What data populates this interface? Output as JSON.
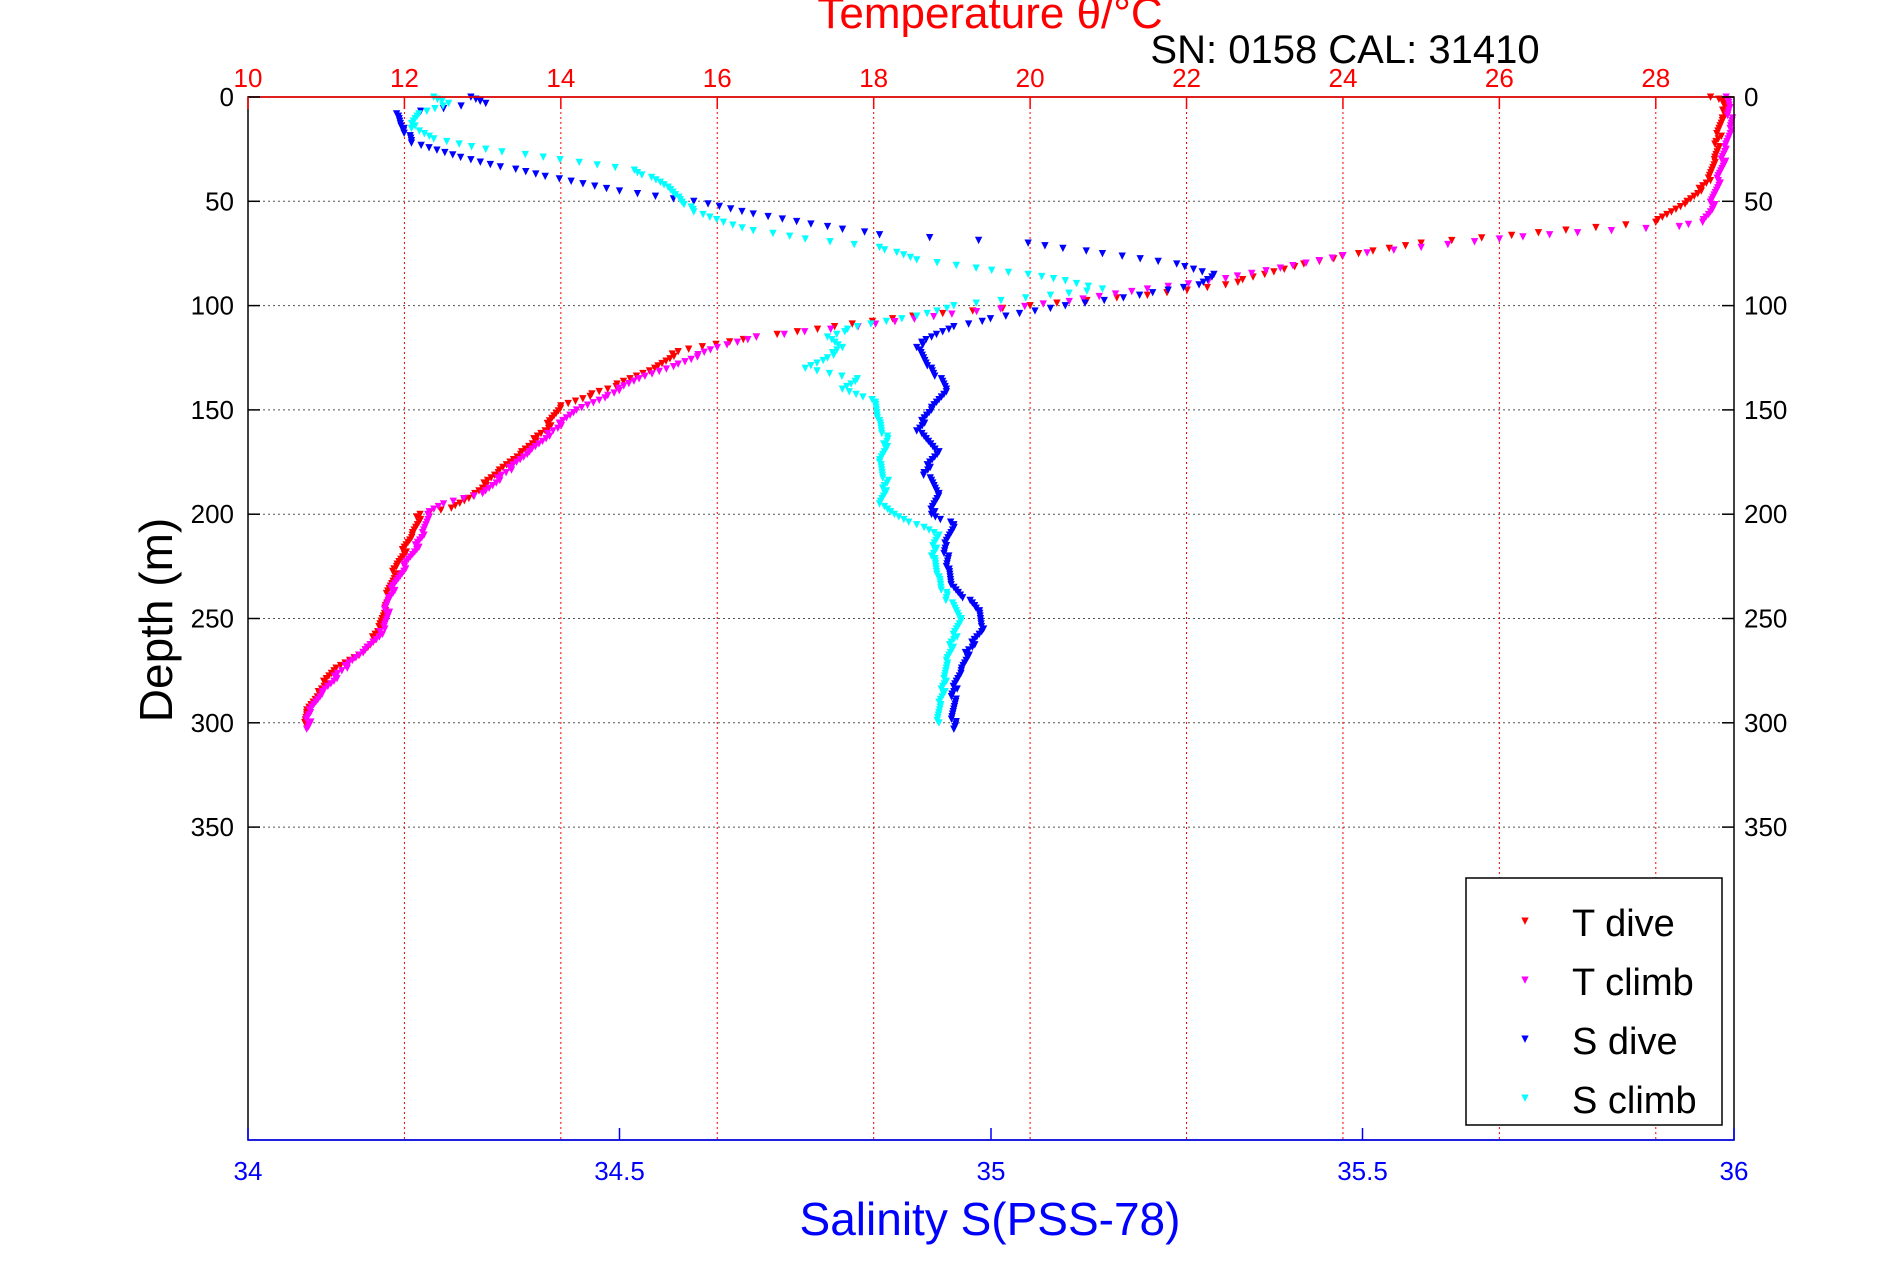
{
  "chart_data": {
    "type": "scatter",
    "title": "Temperature θ/°C",
    "subtitle": "SN: 0158  CAL: 31410",
    "ylabel": "Depth (m)",
    "xlabel": "Salinity S(PSS-78)",
    "x_top_label": "Temperature θ/°C",
    "ylim": [
      0,
      500
    ],
    "y_reversed": true,
    "y_ticks": [
      0,
      50,
      100,
      150,
      200,
      250,
      300,
      350
    ],
    "temperature_axis": {
      "lim": [
        10,
        29
      ],
      "ticks": [
        10,
        12,
        14,
        16,
        18,
        20,
        22,
        24,
        26,
        28
      ],
      "position": "top"
    },
    "salinity_axis": {
      "lim": [
        34,
        36
      ],
      "ticks": [
        34,
        34.5,
        35,
        35.5,
        36
      ],
      "position": "bottom"
    },
    "grid": true,
    "legend_position": "bottom-right",
    "colors": {
      "temperature_axis": "#ff0000",
      "salinity_axis": "#0000ff",
      "T_dive": "#ff0000",
      "T_climb": "#ff00ff",
      "S_dive": "#0000ff",
      "S_climb": "#00ffff"
    },
    "series": [
      {
        "name": "T dive",
        "axis": "temperature",
        "color": "#ff0000",
        "points": [
          [
            28.7,
            0
          ],
          [
            28.85,
            2
          ],
          [
            28.9,
            5
          ],
          [
            28.85,
            10
          ],
          [
            28.8,
            20
          ],
          [
            28.75,
            30
          ],
          [
            28.7,
            40
          ],
          [
            28.4,
            50
          ],
          [
            28.0,
            60
          ],
          [
            26.5,
            65
          ],
          [
            25.0,
            70
          ],
          [
            24.2,
            75
          ],
          [
            23.5,
            80
          ],
          [
            23.0,
            85
          ],
          [
            22.5,
            90
          ],
          [
            21.5,
            95
          ],
          [
            20.0,
            100
          ],
          [
            18.5,
            105
          ],
          [
            17.5,
            110
          ],
          [
            16.5,
            115
          ],
          [
            15.5,
            122
          ],
          [
            15.2,
            130
          ],
          [
            14.6,
            140
          ],
          [
            14.0,
            148
          ],
          [
            13.8,
            160
          ],
          [
            13.5,
            170
          ],
          [
            13.2,
            180
          ],
          [
            12.9,
            190
          ],
          [
            12.6,
            197
          ],
          [
            12.2,
            200
          ],
          [
            12.1,
            210
          ],
          [
            11.9,
            225
          ],
          [
            11.75,
            245
          ],
          [
            11.7,
            255
          ],
          [
            11.5,
            265
          ],
          [
            11.1,
            275
          ],
          [
            10.9,
            285
          ],
          [
            10.75,
            295
          ],
          [
            10.75,
            301
          ]
        ]
      },
      {
        "name": "T climb",
        "axis": "temperature",
        "color": "#ff00ff",
        "points": [
          [
            28.9,
            0
          ],
          [
            28.95,
            5
          ],
          [
            28.95,
            15
          ],
          [
            28.9,
            25
          ],
          [
            28.8,
            40
          ],
          [
            28.7,
            55
          ],
          [
            28.6,
            60
          ],
          [
            28.3,
            62
          ],
          [
            27.0,
            65
          ],
          [
            26.0,
            68
          ],
          [
            25.0,
            72
          ],
          [
            24.0,
            76
          ],
          [
            23.2,
            82
          ],
          [
            22.5,
            87
          ],
          [
            21.5,
            92
          ],
          [
            20.5,
            98
          ],
          [
            19.0,
            104
          ],
          [
            17.8,
            110
          ],
          [
            16.5,
            115
          ],
          [
            16.0,
            120
          ],
          [
            15.5,
            128
          ],
          [
            15.0,
            135
          ],
          [
            14.6,
            143
          ],
          [
            14.2,
            150
          ],
          [
            13.9,
            160
          ],
          [
            13.6,
            170
          ],
          [
            13.3,
            180
          ],
          [
            13.0,
            190
          ],
          [
            12.5,
            195
          ],
          [
            12.3,
            200
          ],
          [
            12.25,
            210
          ],
          [
            12.0,
            225
          ],
          [
            11.8,
            240
          ],
          [
            11.75,
            255
          ],
          [
            11.5,
            265
          ],
          [
            11.2,
            275
          ],
          [
            10.95,
            285
          ],
          [
            10.8,
            295
          ],
          [
            10.75,
            303
          ]
        ]
      },
      {
        "name": "S dive",
        "axis": "salinity",
        "color": "#0000ff",
        "points": [
          [
            34.3,
            0
          ],
          [
            34.32,
            3
          ],
          [
            34.2,
            8
          ],
          [
            34.21,
            15
          ],
          [
            34.22,
            22
          ],
          [
            34.3,
            30
          ],
          [
            34.4,
            38
          ],
          [
            34.5,
            45
          ],
          [
            34.6,
            50
          ],
          [
            34.68,
            56
          ],
          [
            34.78,
            62
          ],
          [
            34.85,
            66
          ],
          [
            35.05,
            70
          ],
          [
            35.15,
            75
          ],
          [
            35.25,
            80
          ],
          [
            35.3,
            85
          ],
          [
            35.28,
            90
          ],
          [
            35.2,
            95
          ],
          [
            35.1,
            100
          ],
          [
            35.02,
            105
          ],
          [
            34.95,
            110
          ],
          [
            34.92,
            115
          ],
          [
            34.9,
            120
          ],
          [
            34.92,
            130
          ],
          [
            34.94,
            140
          ],
          [
            34.92,
            150
          ],
          [
            34.9,
            160
          ],
          [
            34.93,
            170
          ],
          [
            34.91,
            180
          ],
          [
            34.93,
            190
          ],
          [
            34.92,
            200
          ],
          [
            34.95,
            205
          ],
          [
            34.94,
            215
          ],
          [
            34.94,
            225
          ],
          [
            34.95,
            235
          ],
          [
            34.98,
            245
          ],
          [
            34.99,
            255
          ],
          [
            34.97,
            265
          ],
          [
            34.96,
            275
          ],
          [
            34.95,
            285
          ],
          [
            34.95,
            303
          ]
        ]
      },
      {
        "name": "S climb",
        "axis": "salinity",
        "color": "#00ffff",
        "points": [
          [
            34.25,
            0
          ],
          [
            34.27,
            3
          ],
          [
            34.23,
            8
          ],
          [
            34.22,
            15
          ],
          [
            34.25,
            20
          ],
          [
            34.32,
            25
          ],
          [
            34.42,
            30
          ],
          [
            34.52,
            35
          ],
          [
            34.56,
            42
          ],
          [
            34.58,
            48
          ],
          [
            34.6,
            55
          ],
          [
            34.64,
            60
          ],
          [
            34.68,
            64
          ],
          [
            34.75,
            68
          ],
          [
            34.85,
            72
          ],
          [
            34.9,
            78
          ],
          [
            34.98,
            82
          ],
          [
            35.05,
            85
          ],
          [
            35.1,
            88
          ],
          [
            35.15,
            92
          ],
          [
            35.08,
            95
          ],
          [
            34.95,
            100
          ],
          [
            34.9,
            105
          ],
          [
            34.82,
            110
          ],
          [
            34.78,
            115
          ],
          [
            34.8,
            120
          ],
          [
            34.78,
            125
          ],
          [
            34.75,
            130
          ],
          [
            34.82,
            135
          ],
          [
            34.8,
            140
          ],
          [
            34.84,
            145
          ],
          [
            34.85,
            155
          ],
          [
            34.86,
            165
          ],
          [
            34.85,
            175
          ],
          [
            34.86,
            185
          ],
          [
            34.85,
            195
          ],
          [
            34.87,
            200
          ],
          [
            34.9,
            205
          ],
          [
            34.93,
            210
          ],
          [
            34.92,
            220
          ],
          [
            34.93,
            230
          ],
          [
            34.94,
            240
          ],
          [
            34.96,
            250
          ],
          [
            34.95,
            260
          ],
          [
            34.94,
            270
          ],
          [
            34.94,
            280
          ],
          [
            34.93,
            290
          ],
          [
            34.93,
            300
          ]
        ]
      }
    ]
  }
}
